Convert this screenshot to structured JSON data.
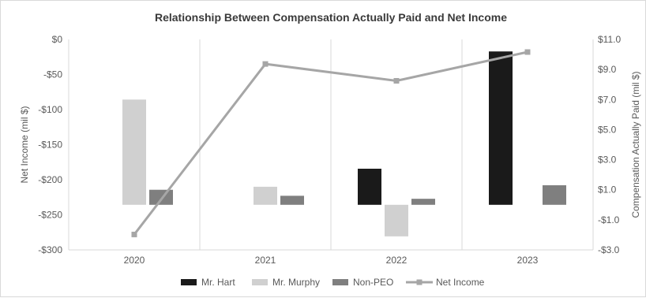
{
  "chart_data": {
    "type": "bar",
    "title": "Relationship Between Compensation Actually Paid and Net Income",
    "categories": [
      "2020",
      "2021",
      "2022",
      "2023"
    ],
    "y_left": {
      "label": "Net Income (mil $)",
      "range": [
        -300,
        0
      ],
      "ticks": [
        "$0",
        "-$50",
        "-$100",
        "-$150",
        "-$200",
        "-$250",
        "-$300"
      ],
      "tick_values": [
        0,
        -50,
        -100,
        -150,
        -200,
        -250,
        -300
      ]
    },
    "y_right": {
      "label": "Compensation Actually Paid (mil $)",
      "range": [
        -3.0,
        11.0
      ],
      "ticks": [
        "$11.0",
        "$9.0",
        "$7.0",
        "$5.0",
        "$3.0",
        "$1.0",
        "-$1.0",
        "-$3.0"
      ],
      "tick_values": [
        11,
        9,
        7,
        5,
        3,
        1,
        -1,
        -3
      ]
    },
    "series": [
      {
        "name": "Mr. Hart",
        "type": "bar",
        "axis": "right",
        "color": "#1a1a1a",
        "values": [
          null,
          null,
          2.4,
          10.2
        ]
      },
      {
        "name": "Mr. Murphy",
        "type": "bar",
        "axis": "right",
        "color": "#d0d0d0",
        "values": [
          7.0,
          1.2,
          -2.1,
          null
        ]
      },
      {
        "name": "Non-PEO",
        "type": "bar",
        "axis": "right",
        "color": "#7f7f7f",
        "values": [
          1.0,
          0.6,
          0.4,
          1.3
        ]
      },
      {
        "name": "Net Income",
        "type": "line",
        "axis": "left",
        "color": "#a6a6a6",
        "values": [
          -278,
          -35,
          -59,
          -18
        ]
      }
    ],
    "grid": "vertical-category-separators",
    "legend": "bottom-center"
  }
}
